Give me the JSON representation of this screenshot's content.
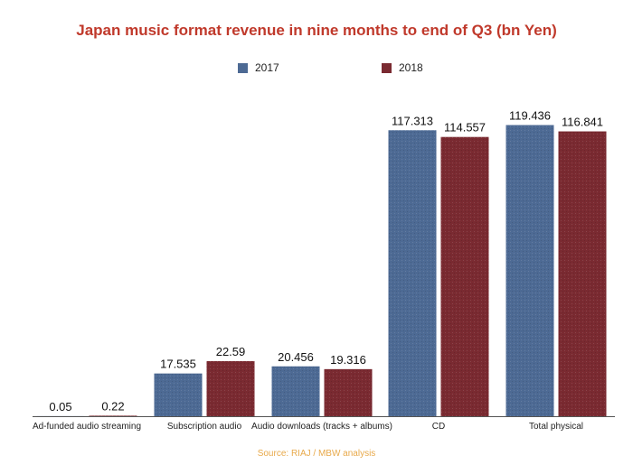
{
  "chart_data": {
    "type": "bar",
    "title": "Japan music format revenue in nine months to end of Q3 (bn Yen)",
    "categories": [
      "Ad-funded audio streaming",
      "Subscription audio",
      "Audio downloads (tracks + albums)",
      "CD",
      "Total physical"
    ],
    "series": [
      {
        "name": "2017",
        "color": "#4d6a94",
        "values": [
          0.05,
          17.535,
          20.456,
          117.313,
          119.436
        ],
        "labels": [
          "0.05",
          "17.535",
          "20.456",
          "117.313",
          "119.436"
        ]
      },
      {
        "name": "2018",
        "color": "#7a2a31",
        "values": [
          0.22,
          22.59,
          19.316,
          114.557,
          116.841
        ],
        "labels": [
          "0.22",
          "22.59",
          "19.316",
          "114.557",
          "116.841"
        ]
      }
    ],
    "xlabel": "",
    "ylabel": "",
    "ylim": [
      0,
      130
    ],
    "grid": false,
    "legend": "top-center",
    "source": "Source: RIAJ /  MBW analysis"
  }
}
